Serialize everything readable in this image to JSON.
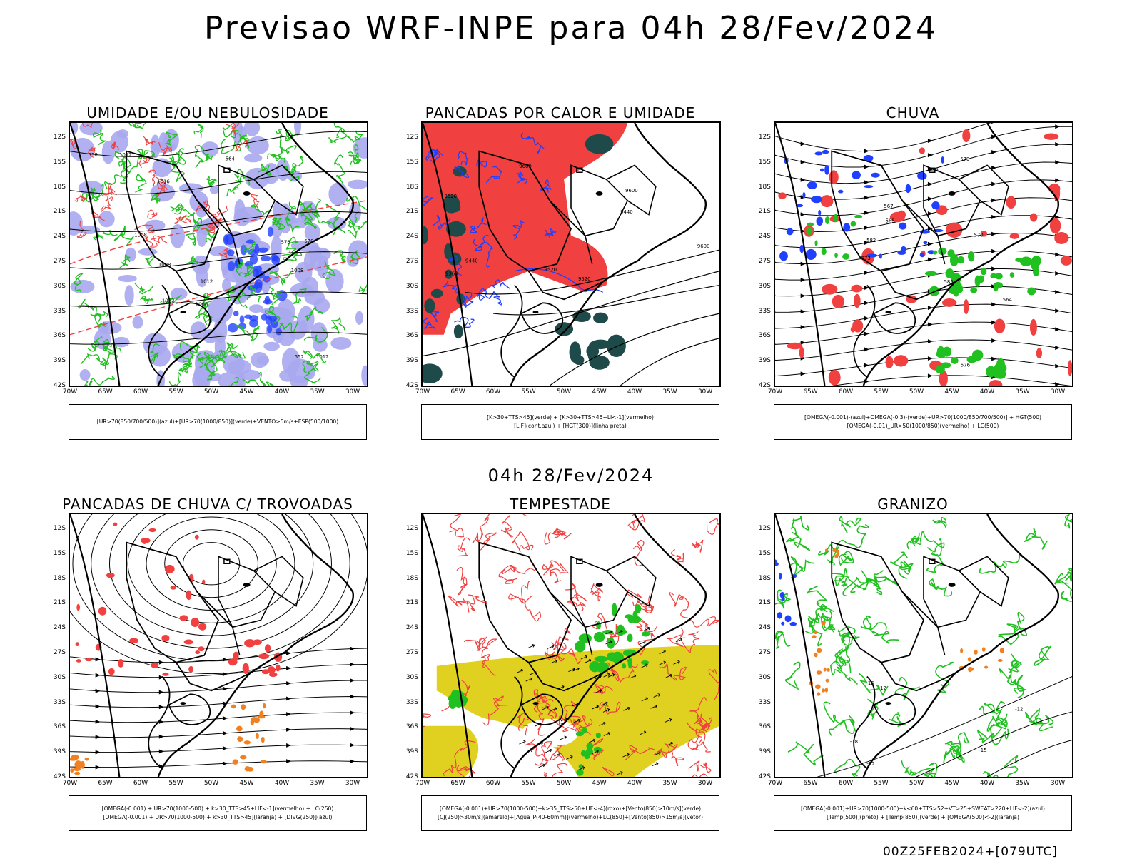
{
  "header": {
    "title": "Previsao WRF-INPE  para 04h 28/Fev/2024",
    "mid_title": "04h 28/Fev/2024",
    "run_stamp": "00Z25FEB2024+[079UTC]"
  },
  "axes": {
    "lat_labels": [
      "12S",
      "15S",
      "18S",
      "21S",
      "24S",
      "27S",
      "30S",
      "33S",
      "36S",
      "39S",
      "42S"
    ],
    "lon_labels": [
      "70W",
      "65W",
      "60W",
      "55W",
      "50W",
      "45W",
      "40W",
      "35W",
      "30W"
    ]
  },
  "colors": {
    "red": "#f04040",
    "green": "#20c020",
    "blue": "#2040ff",
    "lavender": "#a8a8f0",
    "dark_teal": "#1e4a4a",
    "yellow": "#e0d020",
    "orange": "#f08020",
    "black": "#000000"
  },
  "panels": [
    {
      "id": "umidade",
      "title": "UMIDADE E/OU NEBULOSIDADE",
      "legend": [
        "[UR>70(850/700/500)](azul)+[UR>70(1000/850)](verde)+VENTO>5m/s+ESP(500/1000)"
      ],
      "contour_labels": [
        "1012",
        "1008",
        "1012",
        "1008",
        "1012",
        "1016",
        "1008",
        "1008",
        "1012",
        "576",
        "570",
        "564",
        "558",
        "552"
      ]
    },
    {
      "id": "pancadas-calor",
      "title": "PANCADAS POR CALOR E UMIDADE",
      "legend": [
        "[K>30+TTS>45](verde) + [K>30+TTS>45+LI<-1](vermelho)",
        "[LIF](cont.azul) + [HGT(300)](linha preta)"
      ],
      "contour_labels": [
        "9600",
        "9600",
        "9600",
        "9520",
        "9520",
        "9440",
        "9520",
        "9440",
        "9360"
      ]
    },
    {
      "id": "chuva",
      "title": "CHUVA",
      "legend": [
        "[OMEGA(-0.001)-(azul)+OMEGA(-0.3)-(verde)+UR>70(1000/850/700/500)] + HGT(500)",
        "[OMEGA(-0.01)_UR>50(1000/850)(vermelho) + LC(500)"
      ],
      "contour_labels": [
        "585",
        "585",
        "585",
        "582",
        "579",
        "576",
        "573",
        "570",
        "567",
        "564"
      ]
    },
    {
      "id": "pancadas-trovoadas",
      "title": "PANCADAS DE CHUVA C/ TROVOADAS",
      "legend": [
        "[OMEGA(-0.001) + UR>70(1000-500) + k>30_TTS>45+LIF<-1](vermelho) + LC(250)",
        "[OMEGA(-0.001) + UR>70(1000-500) + k>30_TTS>45](laranja) + [DIVG(250)](azul)"
      ],
      "contour_labels": []
    },
    {
      "id": "tempestade",
      "title": "TEMPESTADE",
      "legend": [
        "[OMEGA(-0.001)+UR>70(1000-500)+k>35_TTS>50+LIF<-4](roxo)+[Vento(850)>10m/s](verde)",
        "[CJ(250)>30m/s](amarelo)+[Agua_P(40-60mm)](vermelho)+LC(850)+[Vento(850)>15m/s](vetor)"
      ],
      "contour_labels": []
    },
    {
      "id": "granizo",
      "title": "GRANIZO",
      "legend": [
        "[OMEGA(-0.001)+UR>70(1000-500)+k<60+TTS>52+VT>25+SWEAT>220+LIF<-2](azul)",
        "[Temp(500)](preto) + [Temp(850)](verde) + [OMEGA(500)<-2](laranja)"
      ],
      "contour_labels": [
        "-15",
        "-18",
        "-12",
        "-12",
        "-15",
        "-12"
      ]
    }
  ]
}
